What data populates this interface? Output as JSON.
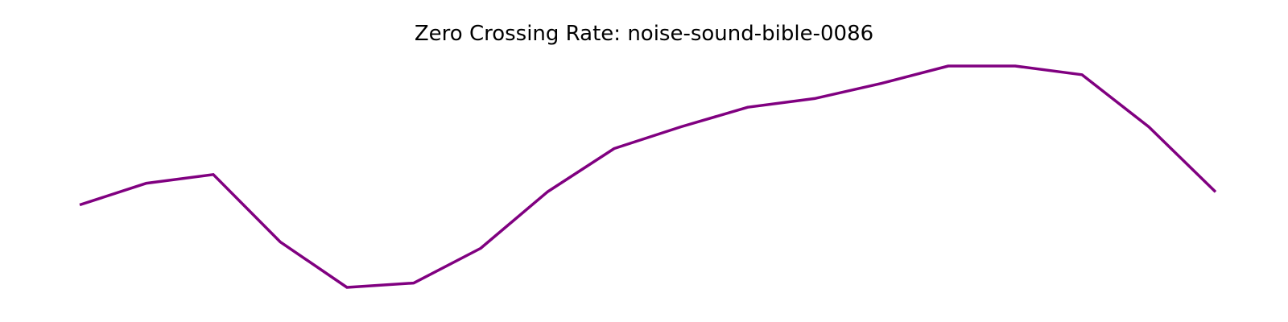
{
  "chart_data": {
    "type": "line",
    "title": "Zero Crossing Rate: noise-sound-bible-0086",
    "xlabel": "",
    "ylabel": "",
    "axes_visible": false,
    "grid": false,
    "series": [
      {
        "color": "#800080",
        "x": [
          0,
          1,
          2,
          3,
          4,
          5,
          6,
          7,
          8,
          9,
          10,
          11,
          12,
          13,
          14,
          15,
          16,
          17
        ],
        "values": [
          0.42,
          0.43,
          0.434,
          0.403,
          0.382,
          0.384,
          0.4,
          0.426,
          0.446,
          0.456,
          0.465,
          0.469,
          0.476,
          0.484,
          0.484,
          0.48,
          0.456,
          0.426
        ]
      }
    ]
  }
}
